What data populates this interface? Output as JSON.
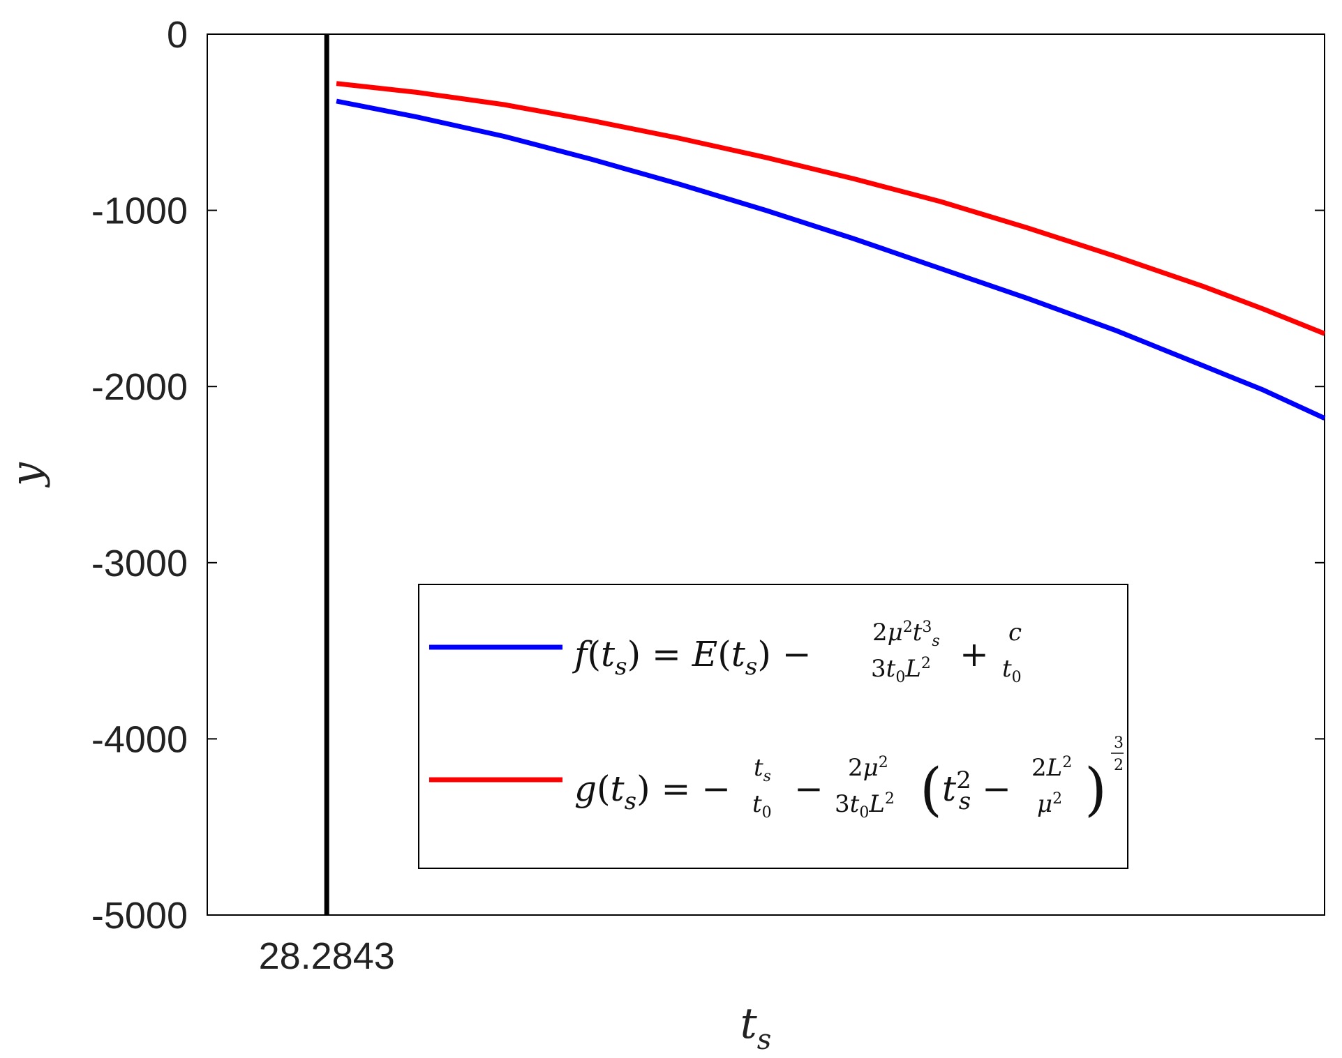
{
  "chart_data": {
    "type": "line",
    "xlabel": "t",
    "xlabel_sub": "s",
    "ylabel": "y",
    "ylim": [
      -5000,
      0
    ],
    "xlim": [
      27.6,
      34.0
    ],
    "yticks": [
      0,
      -1000,
      -2000,
      -3000,
      -4000,
      -5000
    ],
    "ytick_labels": [
      "0",
      "-1000",
      "-2000",
      "-3000",
      "-4000",
      "-5000"
    ],
    "xticks": [
      28.2843
    ],
    "xtick_labels": [
      "28.2843"
    ],
    "vertical_line": {
      "x": 28.2843,
      "color": "#000000"
    },
    "grid": false,
    "legend_position": "lower-right",
    "series": [
      {
        "legend_label": "f(t_s) = E(t_s) − 2μ²t_s³ / (3t₀L²) + c / t₀",
        "color": "#0000ff",
        "x": [
          28.34,
          28.8,
          29.3,
          29.8,
          30.3,
          30.8,
          31.3,
          31.8,
          32.3,
          32.8,
          33.3,
          33.65,
          34.0
        ],
        "y": [
          -380,
          -470,
          -580,
          -710,
          -850,
          -1000,
          -1160,
          -1330,
          -1500,
          -1680,
          -1880,
          -2020,
          -2180
        ]
      },
      {
        "legend_label": "g(t_s) = −t_s / t₀ − 2μ² / (3t₀L²) (t_s² − 2L²/μ²)^(3/2)",
        "color": "#ff0000",
        "x": [
          28.34,
          28.8,
          29.3,
          29.8,
          30.3,
          30.8,
          31.3,
          31.8,
          32.3,
          32.8,
          33.3,
          33.65,
          34.0
        ],
        "y": [
          -280,
          -330,
          -400,
          -490,
          -590,
          -700,
          -820,
          -950,
          -1100,
          -1260,
          -1430,
          -1560,
          -1700
        ]
      }
    ]
  }
}
